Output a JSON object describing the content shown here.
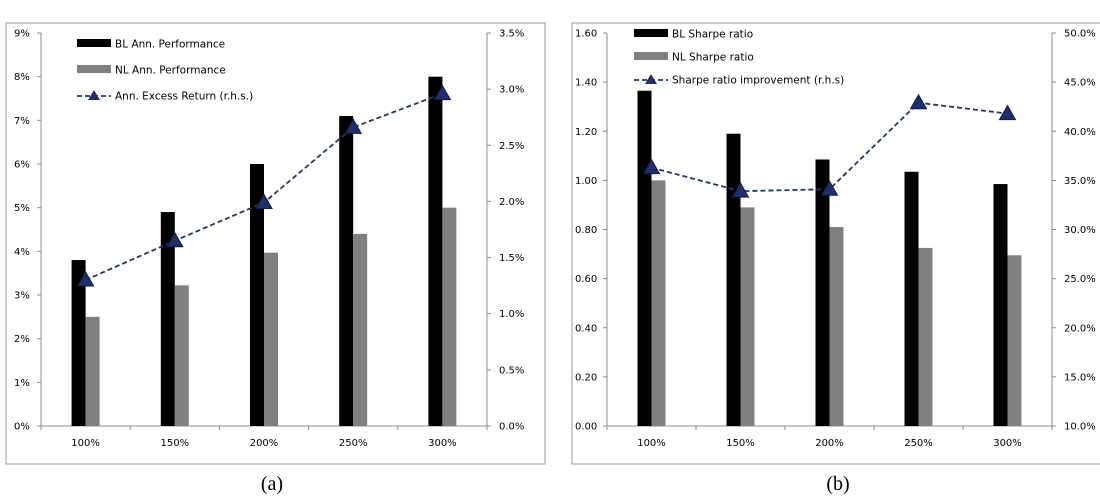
{
  "chart_data": [
    {
      "type": "bar",
      "panel_label": "(a)",
      "categories": [
        "100%",
        "150%",
        "200%",
        "250%",
        "300%"
      ],
      "series": [
        {
          "name": "BL Ann. Performance",
          "kind": "bar",
          "axis": "left",
          "color": "#000000",
          "values": [
            3.8,
            4.9,
            6.0,
            7.1,
            8.0
          ]
        },
        {
          "name": "NL Ann. Performance",
          "kind": "bar",
          "axis": "left",
          "color": "#808080",
          "values": [
            2.5,
            3.22,
            3.97,
            4.4,
            5.0
          ]
        },
        {
          "name": "Ann. Excess Return (r.h.s.)",
          "kind": "line",
          "axis": "right",
          "color": "#1f3864",
          "values": [
            1.3,
            1.65,
            1.99,
            2.66,
            2.96
          ]
        }
      ],
      "y_left": {
        "min": 0,
        "max": 9,
        "step": 1,
        "ticks": [
          "0%",
          "1%",
          "2%",
          "3%",
          "4%",
          "5%",
          "6%",
          "7%",
          "8%",
          "9%"
        ]
      },
      "y_right": {
        "min": 0,
        "max": 3.5,
        "step": 0.5,
        "ticks": [
          "0.0%",
          "0.5%",
          "1.0%",
          "1.5%",
          "2.0%",
          "2.5%",
          "3.0%",
          "3.5%"
        ]
      },
      "legend_position": "top-left",
      "grid": false
    },
    {
      "type": "bar",
      "panel_label": "(b)",
      "categories": [
        "100%",
        "150%",
        "200%",
        "250%",
        "300%"
      ],
      "series": [
        {
          "name": "BL Sharpe ratio",
          "kind": "bar",
          "axis": "left",
          "color": "#000000",
          "values": [
            1.365,
            1.19,
            1.085,
            1.035,
            0.985
          ]
        },
        {
          "name": "NL Sharpe ratio",
          "kind": "bar",
          "axis": "left",
          "color": "#808080",
          "values": [
            1.0,
            0.89,
            0.81,
            0.725,
            0.695
          ]
        },
        {
          "name": "Sharpe ratio improvement (r.h.s)",
          "kind": "line",
          "axis": "right",
          "color": "#1f3864",
          "values": [
            36.3,
            33.9,
            34.1,
            42.9,
            41.8
          ]
        }
      ],
      "y_left": {
        "min": 0,
        "max": 1.6,
        "step": 0.2,
        "ticks": [
          "0.00",
          "0.20",
          "0.40",
          "0.60",
          "0.80",
          "1.00",
          "1.20",
          "1.40",
          "1.60"
        ]
      },
      "y_right": {
        "min": 10,
        "max": 50,
        "step": 5,
        "ticks": [
          "10.0%",
          "15.0%",
          "20.0%",
          "25.0%",
          "30.0%",
          "35.0%",
          "40.0%",
          "45.0%",
          "50.0%"
        ]
      },
      "legend_position": "top-left",
      "grid": false
    }
  ]
}
